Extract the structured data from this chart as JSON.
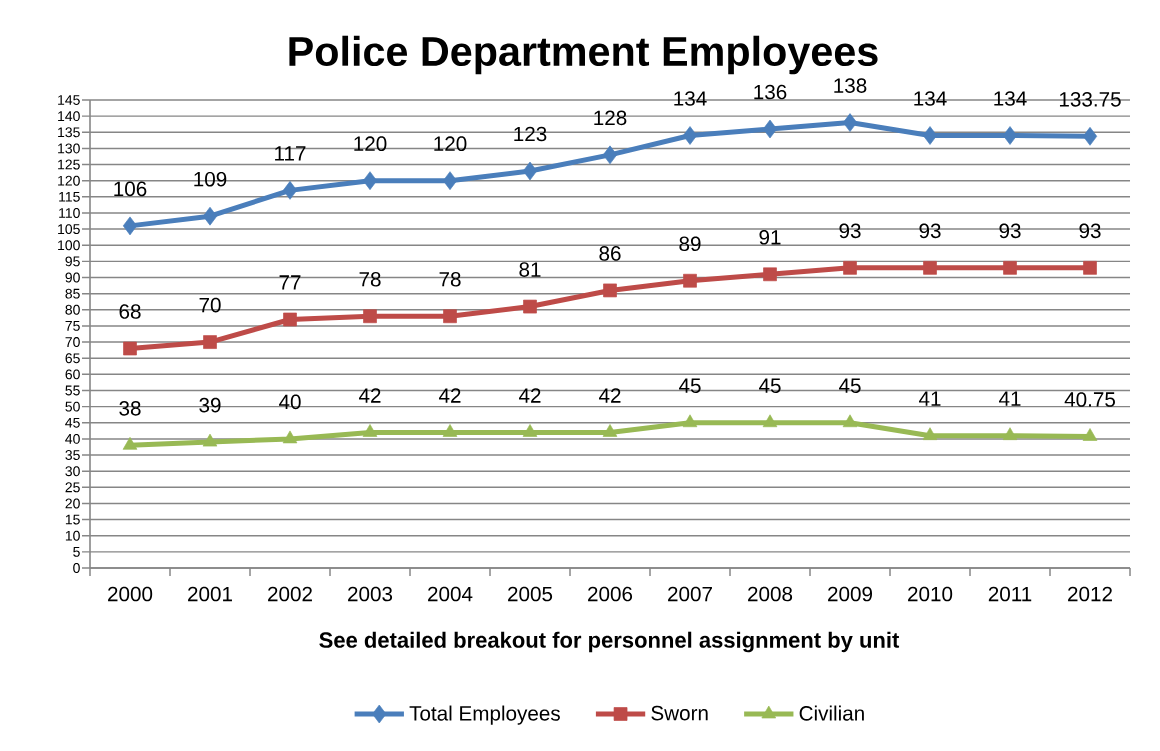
{
  "chart_data": {
    "type": "line",
    "title": "Police Department Employees",
    "xlabel": "See detailed  breakout for personnel assignment  by unit",
    "categories": [
      "2000",
      "2001",
      "2002",
      "2003",
      "2004",
      "2005",
      "2006",
      "2007",
      "2008",
      "2009",
      "2010",
      "2011",
      "2012"
    ],
    "series": [
      {
        "name": "Total Employees",
        "color": "#4a7ebb",
        "marker": "diamond",
        "values": [
          106,
          109,
          117,
          120,
          120,
          123,
          128,
          134,
          136,
          138,
          134,
          134,
          133.75
        ]
      },
      {
        "name": "Sworn",
        "color": "#be4b48",
        "marker": "square",
        "values": [
          68,
          70,
          77,
          78,
          78,
          81,
          86,
          89,
          91,
          93,
          93,
          93,
          93
        ]
      },
      {
        "name": "Civilian",
        "color": "#98b954",
        "marker": "triangle",
        "values": [
          38,
          39,
          40,
          42,
          42,
          42,
          42,
          45,
          45,
          45,
          41,
          41,
          40.75
        ]
      }
    ],
    "ylim": [
      0,
      145
    ],
    "yticks": [
      0,
      5,
      10,
      15,
      20,
      25,
      30,
      35,
      40,
      45,
      50,
      55,
      60,
      65,
      70,
      75,
      80,
      85,
      90,
      95,
      100,
      105,
      110,
      115,
      120,
      125,
      130,
      135,
      140,
      145
    ],
    "grid": "y",
    "legend": "bottom",
    "data_labels": true,
    "line_style": "solid"
  }
}
